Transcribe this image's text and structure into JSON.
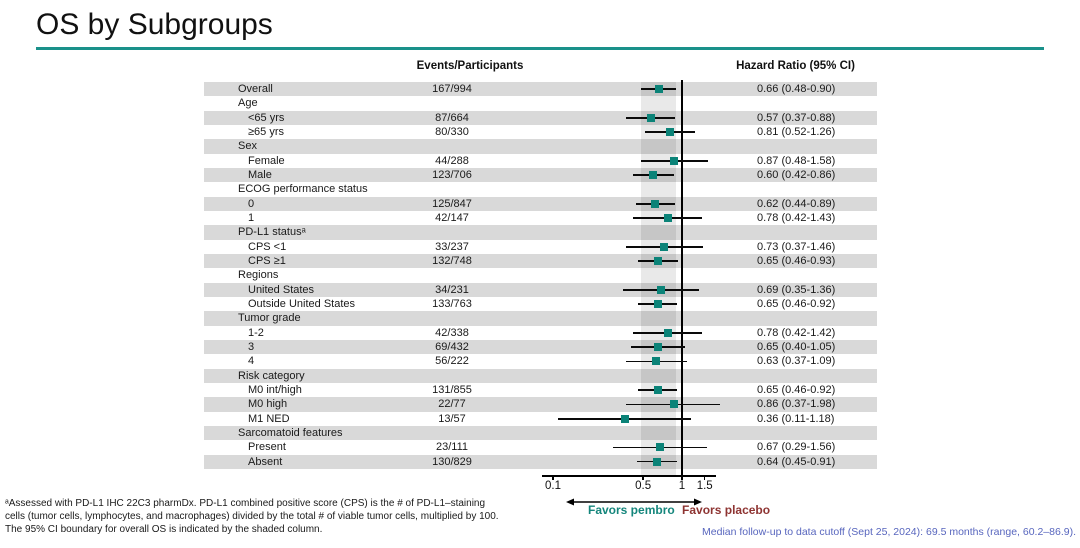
{
  "slide": {
    "title": "OS by Subgroups",
    "footnote_lines": [
      "ᵃAssessed with PD-L1 IHC 22C3 pharmDx. PD-L1 combined positive score (CPS) is the # of PD-L1–staining",
      "cells (tumor cells, lymphocytes, and macrophages) divided by the total # of viable tumor cells, multiplied by 100.",
      "The 95% CI boundary for overall OS is indicated by the shaded column."
    ],
    "median_note": "Median follow-up to data cutoff (Sept 25, 2024): 69.5 months (range, 60.2–86.9).",
    "colors": {
      "accent_teal": "#1A918A",
      "marker_teal": "#0B8378",
      "favors_pembro_teal": "#15867C",
      "favors_placebo_red": "#8E3432",
      "median_note_blue": "#5866BE",
      "row_shade_gray": "#D9D9D9"
    }
  },
  "chart_data": {
    "type": "forest",
    "title": "OS by Subgroups",
    "col_headers": {
      "events": "Events/Participants",
      "hr": "Hazard Ratio (95% CI)"
    },
    "x_scale": "log10",
    "ref_line": 1,
    "shaded_band": {
      "lo": 0.48,
      "hi": 0.9
    },
    "x_ticks": [
      {
        "value": 0.1,
        "label": "0.1"
      },
      {
        "value": 0.5,
        "label": "0.5"
      },
      {
        "value": 1,
        "label": "1"
      },
      {
        "value": 1.5,
        "label": "1.5"
      }
    ],
    "favors": {
      "left": "Favors pembro",
      "right": "Favors placebo"
    },
    "rows": [
      {
        "label": "Overall",
        "indent": 0,
        "events": "167/994",
        "hr": 0.66,
        "lo": 0.48,
        "hi": 0.9,
        "hr_text": "0.66 (0.48-0.90)",
        "shaded": true
      },
      {
        "label": "Age",
        "indent": 0,
        "shaded": false
      },
      {
        "label": "<65 yrs",
        "indent": 1,
        "events": "87/664",
        "hr": 0.57,
        "lo": 0.37,
        "hi": 0.88,
        "hr_text": "0.57 (0.37-0.88)",
        "shaded": true
      },
      {
        "label": "≥65 yrs",
        "indent": 1,
        "events": "80/330",
        "hr": 0.81,
        "lo": 0.52,
        "hi": 1.26,
        "hr_text": "0.81 (0.52-1.26)",
        "shaded": false
      },
      {
        "label": "Sex",
        "indent": 0,
        "shaded": true
      },
      {
        "label": "Female",
        "indent": 1,
        "events": "44/288",
        "hr": 0.87,
        "lo": 0.48,
        "hi": 1.58,
        "hr_text": "0.87 (0.48-1.58)",
        "shaded": false
      },
      {
        "label": "Male",
        "indent": 1,
        "events": "123/706",
        "hr": 0.6,
        "lo": 0.42,
        "hi": 0.86,
        "hr_text": "0.60 (0.42-0.86)",
        "shaded": true
      },
      {
        "label": "ECOG performance status",
        "indent": 0,
        "shaded": false
      },
      {
        "label": "0",
        "indent": 1,
        "events": "125/847",
        "hr": 0.62,
        "lo": 0.44,
        "hi": 0.89,
        "hr_text": "0.62 (0.44-0.89)",
        "shaded": true
      },
      {
        "label": "1",
        "indent": 1,
        "events": "42/147",
        "hr": 0.78,
        "lo": 0.42,
        "hi": 1.43,
        "hr_text": "0.78 (0.42-1.43)",
        "shaded": false
      },
      {
        "label": "PD-L1 statusᵃ",
        "indent": 0,
        "shaded": true
      },
      {
        "label": "CPS <1",
        "indent": 1,
        "events": "33/237",
        "hr": 0.73,
        "lo": 0.37,
        "hi": 1.46,
        "hr_text": "0.73 (0.37-1.46)",
        "shaded": false
      },
      {
        "label": "CPS ≥1",
        "indent": 1,
        "events": "132/748",
        "hr": 0.65,
        "lo": 0.46,
        "hi": 0.93,
        "hr_text": "0.65 (0.46-0.93)",
        "shaded": true
      },
      {
        "label": "Regions",
        "indent": 0,
        "shaded": false
      },
      {
        "label": "United States",
        "indent": 1,
        "events": "34/231",
        "hr": 0.69,
        "lo": 0.35,
        "hi": 1.36,
        "hr_text": "0.69 (0.35-1.36)",
        "shaded": true
      },
      {
        "label": "Outside United States",
        "indent": 1,
        "events": "133/763",
        "hr": 0.65,
        "lo": 0.46,
        "hi": 0.92,
        "hr_text": "0.65 (0.46-0.92)",
        "shaded": false
      },
      {
        "label": "Tumor grade",
        "indent": 0,
        "shaded": true
      },
      {
        "label": "1-2",
        "indent": 1,
        "events": "42/338",
        "hr": 0.78,
        "lo": 0.42,
        "hi": 1.42,
        "hr_text": "0.78 (0.42-1.42)",
        "shaded": false
      },
      {
        "label": "3",
        "indent": 1,
        "events": "69/432",
        "hr": 0.65,
        "lo": 0.4,
        "hi": 1.05,
        "hr_text": "0.65 (0.40-1.05)",
        "shaded": true
      },
      {
        "label": "4",
        "indent": 1,
        "events": "56/222",
        "hr": 0.63,
        "lo": 0.37,
        "hi": 1.09,
        "hr_text": "0.63 (0.37-1.09)",
        "shaded": false
      },
      {
        "label": "Risk category",
        "indent": 0,
        "shaded": true
      },
      {
        "label": "M0 int/high",
        "indent": 1,
        "events": "131/855",
        "hr": 0.65,
        "lo": 0.46,
        "hi": 0.92,
        "hr_text": "0.65 (0.46-0.92)",
        "shaded": false
      },
      {
        "label": "M0 high",
        "indent": 1,
        "events": "22/77",
        "hr": 0.86,
        "lo": 0.37,
        "hi": 1.98,
        "hr_text": "0.86 (0.37-1.98)",
        "shaded": true
      },
      {
        "label": "M1 NED",
        "indent": 1,
        "events": "13/57",
        "hr": 0.36,
        "lo": 0.11,
        "hi": 1.18,
        "hr_text": "0.36 (0.11-1.18)",
        "shaded": false
      },
      {
        "label": "Sarcomatoid features",
        "indent": 0,
        "shaded": true
      },
      {
        "label": "Present",
        "indent": 1,
        "events": "23/111",
        "hr": 0.67,
        "lo": 0.29,
        "hi": 1.56,
        "hr_text": "0.67 (0.29-1.56)",
        "shaded": false
      },
      {
        "label": "Absent",
        "indent": 1,
        "events": "130/829",
        "hr": 0.64,
        "lo": 0.45,
        "hi": 0.91,
        "hr_text": "0.64 (0.45-0.91)",
        "shaded": true
      }
    ]
  }
}
